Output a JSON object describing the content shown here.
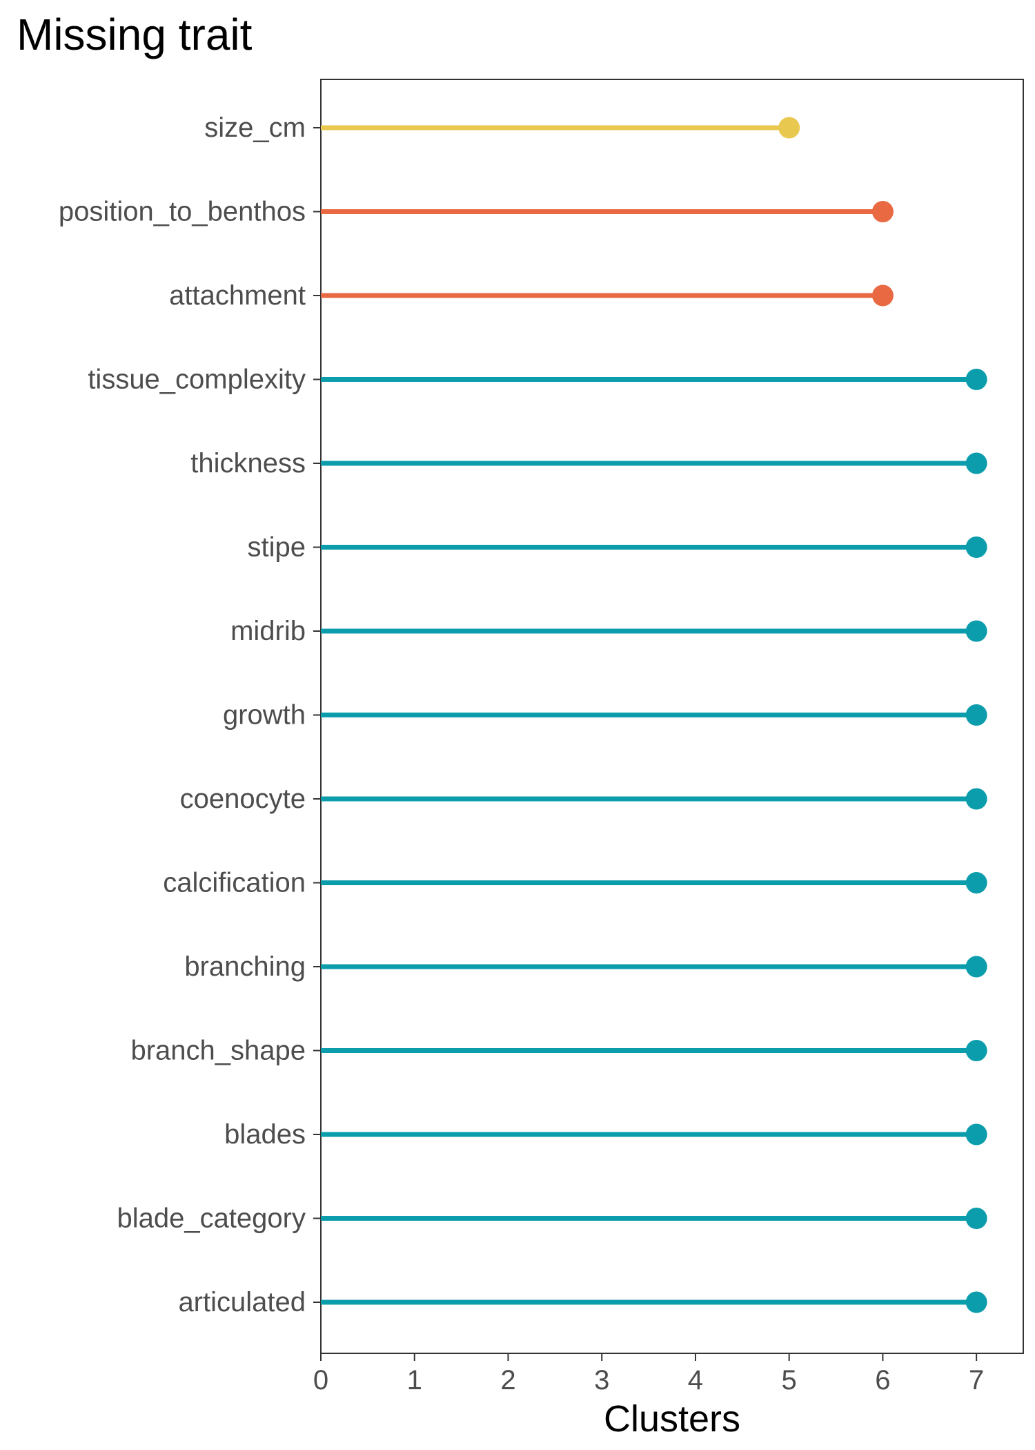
{
  "chart_data": {
    "type": "lollipop",
    "title": "Missing trait",
    "xlabel": "Clusters",
    "ylabel": "",
    "xlim": [
      0,
      7.5
    ],
    "xticks": [
      0,
      1,
      2,
      3,
      4,
      5,
      6,
      7
    ],
    "xtick_labels": [
      "0",
      "1",
      "2",
      "3",
      "4",
      "5",
      "6",
      "7"
    ],
    "grid": false,
    "legend": "none",
    "categories": [
      "size_cm",
      "position_to_benthos",
      "attachment",
      "tissue_complexity",
      "thickness",
      "stipe",
      "midrib",
      "growth",
      "coenocyte",
      "calcification",
      "branching",
      "branch_shape",
      "blades",
      "blade_category",
      "articulated"
    ],
    "values": [
      5,
      6,
      6,
      7,
      7,
      7,
      7,
      7,
      7,
      7,
      7,
      7,
      7,
      7,
      7
    ],
    "colors": [
      "#E9C84F",
      "#E96A42",
      "#E96A42",
      "#0C9DAC",
      "#0C9DAC",
      "#0C9DAC",
      "#0C9DAC",
      "#0C9DAC",
      "#0C9DAC",
      "#0C9DAC",
      "#0C9DAC",
      "#0C9DAC",
      "#0C9DAC",
      "#0C9DAC",
      "#0C9DAC"
    ]
  }
}
